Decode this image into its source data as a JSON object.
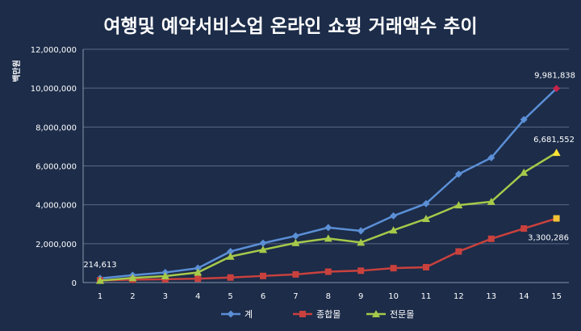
{
  "chart_data": {
    "type": "line",
    "title": "여행및 예약서비스업 온라인 쇼핑 거래액수 추이",
    "ylabel": "백만원",
    "xlabel": "",
    "x": [
      1,
      2,
      3,
      4,
      5,
      6,
      7,
      8,
      9,
      10,
      11,
      12,
      13,
      14,
      15
    ],
    "x_tick_labels": [
      "1",
      "2",
      "3",
      "4",
      "5",
      "6",
      "7",
      "8",
      "9",
      "10",
      "11",
      "12",
      "13",
      "14",
      "15"
    ],
    "ylim": [
      0,
      12000000
    ],
    "y_tick_labels": [
      "0",
      "2,000,000",
      "4,000,000",
      "6,000,000",
      "8,000,000",
      "10,000,000",
      "12,000,000"
    ],
    "y_ticks": [
      0,
      2000000,
      4000000,
      6000000,
      8000000,
      10000000,
      12000000
    ],
    "grid": true,
    "legend_position": "bottom",
    "series": [
      {
        "name": "계",
        "color": "#5b8fd6",
        "marker": "diamond",
        "values": [
          214613,
          380000,
          520000,
          740000,
          1600000,
          2030000,
          2400000,
          2830000,
          2660000,
          3430000,
          4060000,
          5580000,
          6420000,
          8380000,
          9981838
        ]
      },
      {
        "name": "종합몰",
        "color": "#c9413d",
        "marker": "square",
        "values": [
          110000,
          150000,
          170000,
          200000,
          260000,
          340000,
          420000,
          560000,
          610000,
          740000,
          790000,
          1600000,
          2250000,
          2780000,
          3300286
        ]
      },
      {
        "name": "전문몰",
        "color": "#a6c94a",
        "marker": "triangle",
        "values": [
          100000,
          240000,
          330000,
          520000,
          1340000,
          1690000,
          2040000,
          2270000,
          2060000,
          2690000,
          3280000,
          3980000,
          4160000,
          5660000,
          6681552
        ]
      }
    ],
    "annotations": [
      {
        "text": "214,613",
        "series": 0,
        "index": 0
      },
      {
        "text": "9,981,838",
        "series": 0,
        "index": 14
      },
      {
        "text": "6,681,552",
        "series": 2,
        "index": 14
      },
      {
        "text": "3,300,286",
        "series": 1,
        "index": 14
      }
    ],
    "last_point_colors": [
      "#c8234a",
      "#f5c335",
      "#ffe335"
    ]
  }
}
